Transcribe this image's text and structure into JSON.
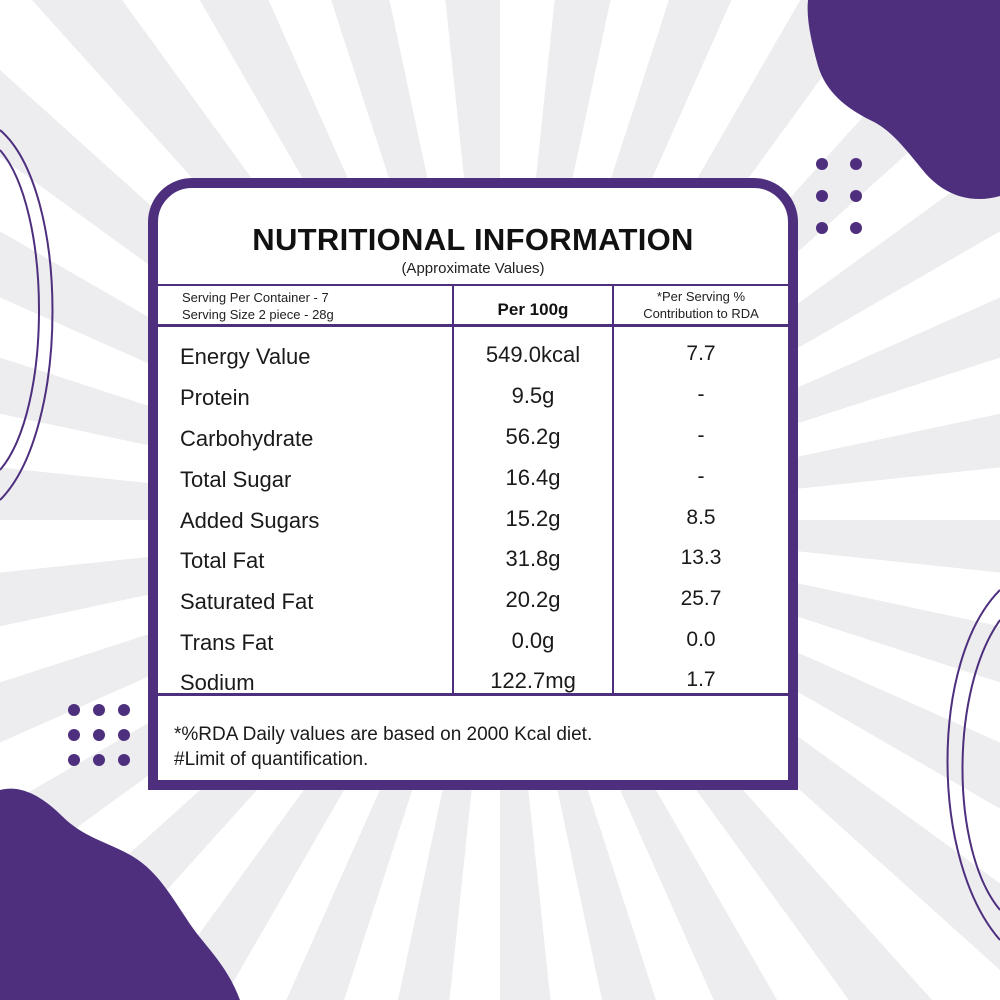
{
  "panel": {
    "title": "NUTRITIONAL INFORMATION",
    "subtitle": "(Approximate Values)"
  },
  "header": {
    "serving_per_container": "Serving Per Container - 7",
    "serving_size": "Serving Size 2 piece - 28g",
    "per_100g_label": "Per 100g",
    "rda_label_line1": "*Per Serving %",
    "rda_label_line2": "Contribution to RDA"
  },
  "rows": [
    {
      "name": "Energy Value",
      "per100": "549.0kcal",
      "rda": "7.7"
    },
    {
      "name": "Protein",
      "per100": "9.5g",
      "rda": "-"
    },
    {
      "name": "Carbohydrate",
      "per100": "56.2g",
      "rda": "-"
    },
    {
      "name": "Total Sugar",
      "per100": "16.4g",
      "rda": "-"
    },
    {
      "name": "Added Sugars",
      "per100": "15.2g",
      "rda": "8.5"
    },
    {
      "name": "Total Fat",
      "per100": "31.8g",
      "rda": "13.3"
    },
    {
      "name": "Saturated Fat",
      "per100": "20.2g",
      "rda": "25.7"
    },
    {
      "name": "Trans Fat",
      "per100": "0.0g",
      "rda": "0.0"
    },
    {
      "name": "Sodium",
      "per100": "122.7mg",
      "rda": "1.7"
    }
  ],
  "footnotes": {
    "line1": "*%RDA Daily values are based on 2000 Kcal diet.",
    "line2": "#Limit of quantification."
  },
  "colors": {
    "accent": "#4e2f7e",
    "background": "#f6f6f8"
  }
}
